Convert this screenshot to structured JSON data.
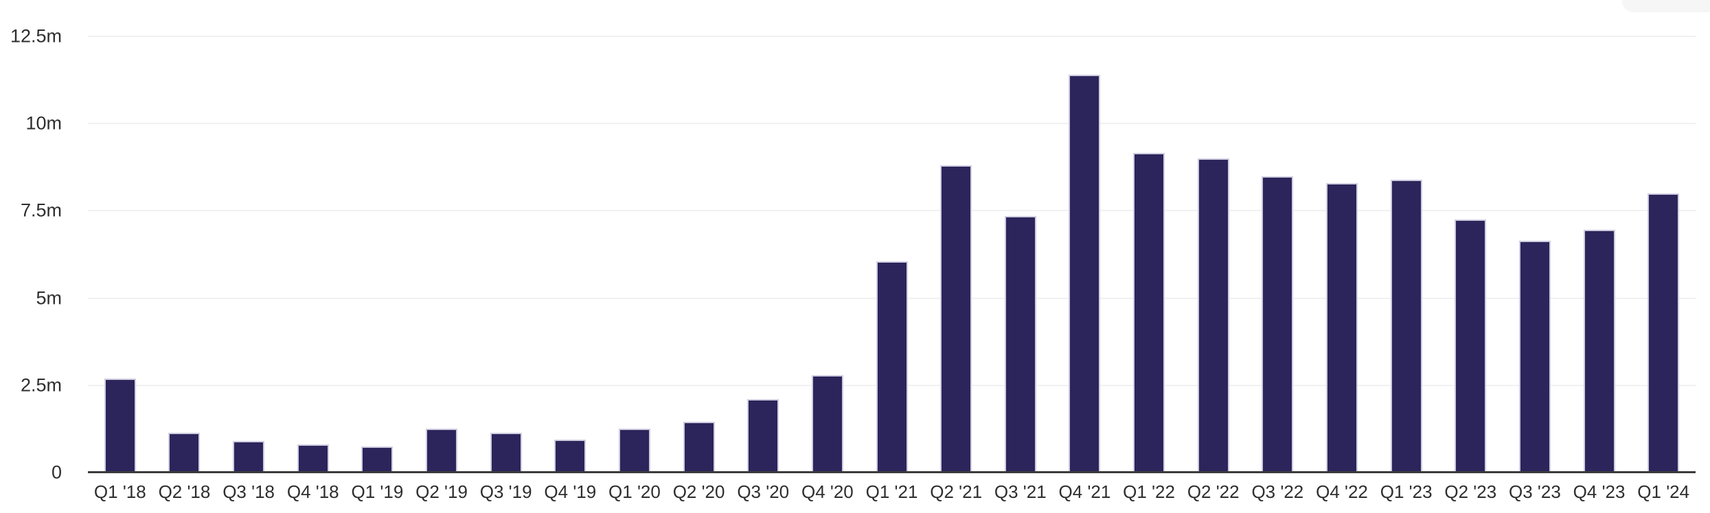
{
  "chart_data": {
    "type": "bar",
    "title": "",
    "unit": "m",
    "ylim": [
      0,
      12.5
    ],
    "grid": "horizontal",
    "legend": "none",
    "categories": [
      "Q1 '18",
      "Q2 '18",
      "Q3 '18",
      "Q4 '18",
      "Q1 '19",
      "Q2 '19",
      "Q3 '19",
      "Q4 '19",
      "Q1 '20",
      "Q2 '20",
      "Q3 '20",
      "Q4 '20",
      "Q1 '21",
      "Q2 '21",
      "Q3 '21",
      "Q4 '21",
      "Q1 '22",
      "Q2 '22",
      "Q3 '22",
      "Q4 '22",
      "Q1 '23",
      "Q2 '23",
      "Q3 '23",
      "Q4 '23",
      "Q1 '24"
    ],
    "values": [
      2.7,
      1.15,
      0.9,
      0.8,
      0.75,
      1.25,
      1.15,
      0.95,
      1.25,
      1.45,
      2.1,
      2.8,
      6.05,
      8.8,
      7.35,
      11.4,
      9.15,
      9.0,
      8.5,
      8.3,
      8.4,
      7.25,
      6.65,
      6.95,
      8.0
    ],
    "yticks": [
      {
        "value": 12.5,
        "label": "12.5m"
      },
      {
        "value": 10,
        "label": "10m"
      },
      {
        "value": 7.5,
        "label": "7.5m"
      },
      {
        "value": 5,
        "label": "5m"
      },
      {
        "value": 2.5,
        "label": "2.5m"
      },
      {
        "value": 0,
        "label": "0"
      }
    ],
    "colors": {
      "bar_fill": "#2b255b",
      "bar_border": "#cfccdf",
      "gridline": "#f1f1f1",
      "axis_line": "#3b3b3b",
      "tick_label": "#2e2e2e",
      "background": "#ffffff"
    }
  }
}
